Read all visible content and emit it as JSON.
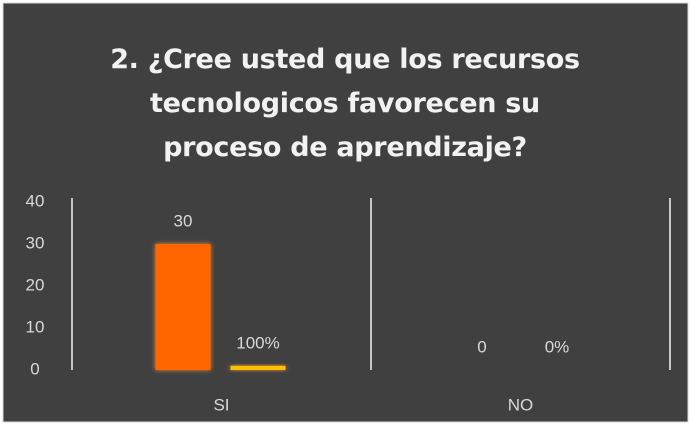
{
  "chart_data": {
    "type": "bar",
    "title": "2. ¿Cree usted que los recursos tecnologicos favorecen su proceso de aprendizaje?",
    "categories": [
      "SI",
      "NO"
    ],
    "series": [
      {
        "color": "#ff6600",
        "values": [
          30,
          0
        ]
      },
      {
        "color": "#ffc000",
        "values": [
          1,
          0
        ],
        "value_labels": [
          "100%",
          "0%"
        ]
      }
    ],
    "ylim": [
      0,
      40
    ],
    "yticks": [
      0,
      10,
      20,
      30,
      40
    ],
    "grid": false
  }
}
